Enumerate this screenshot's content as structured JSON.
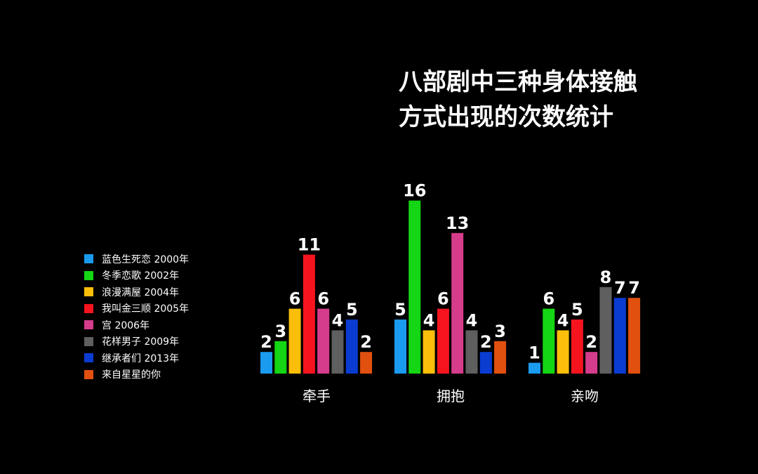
{
  "chart_data": {
    "type": "bar",
    "title_lines": [
      "八部剧中三种身体接触",
      "方式出现的次数统计"
    ],
    "categories": [
      "牵手",
      "拥抱",
      "亲吻"
    ],
    "series": [
      {
        "name": "蓝色生死恋 2000年",
        "color": "#1a9bf0",
        "values": [
          2,
          5,
          1
        ]
      },
      {
        "name": "冬季恋歌 2002年",
        "color": "#14d614",
        "values": [
          3,
          16,
          6
        ]
      },
      {
        "name": "浪漫满屋 2004年",
        "color": "#fbbe0a",
        "values": [
          6,
          4,
          4
        ]
      },
      {
        "name": "我叫金三顺 2005年",
        "color": "#f5141e",
        "values": [
          11,
          6,
          5
        ]
      },
      {
        "name": "宫 2006年",
        "color": "#d63c8c",
        "values": [
          6,
          13,
          2
        ]
      },
      {
        "name": "花样男子 2009年",
        "color": "#5f5f5f",
        "values": [
          4,
          4,
          8
        ]
      },
      {
        "name": "继承者们 2013年",
        "color": "#0a3cd2",
        "values": [
          5,
          2,
          7
        ]
      },
      {
        "name": "来自星星的你",
        "color": "#e1500f",
        "values": [
          2,
          3,
          7
        ]
      }
    ],
    "ylim": [
      0,
      16
    ],
    "grid": false,
    "legend_position": "left"
  }
}
